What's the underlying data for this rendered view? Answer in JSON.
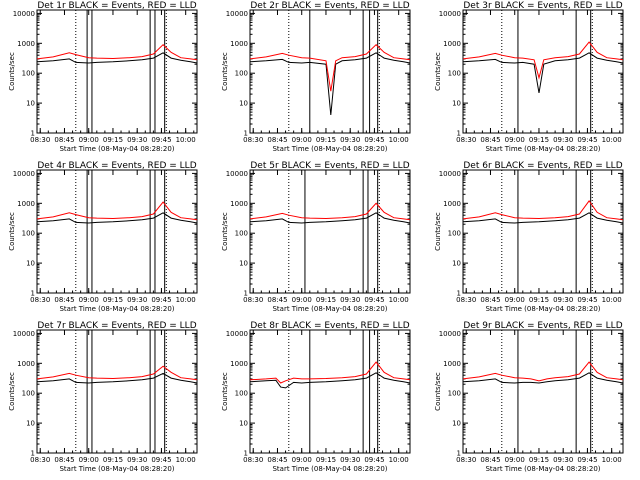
{
  "figure": {
    "rows": 3,
    "cols": 3,
    "colors": {
      "events": "#000000",
      "lld": "#ff0000",
      "axes": "#000000"
    }
  },
  "common": {
    "xlabel": "Start Time (08-May-04 08:28:20)",
    "ylabel": "Counts/sec",
    "xticks": [
      "08:30",
      "08:45",
      "09:00",
      "09:15",
      "09:30",
      "09:45",
      "10:00"
    ],
    "yticks": [
      "1",
      "10",
      "100",
      "1000",
      "10000"
    ]
  },
  "chart_data": [
    {
      "type": "line",
      "title": "Det 1r BLACK = Events, RED = LLD",
      "xlim": [
        "08:28",
        "10:07"
      ],
      "ylim": [
        1,
        13000
      ],
      "yscale": "log",
      "x": [
        "08:28",
        "08:38",
        "08:48",
        "08:52",
        "09:00",
        "09:05",
        "09:15",
        "09:25",
        "09:33",
        "09:40",
        "09:46",
        "09:51",
        "09:57",
        "10:03",
        "10:07"
      ],
      "series": [
        {
          "name": "Events",
          "values": [
            240,
            260,
            300,
            230,
            220,
            230,
            240,
            260,
            280,
            320,
            480,
            320,
            270,
            240,
            220
          ]
        },
        {
          "name": "LLD",
          "values": [
            300,
            350,
            480,
            420,
            330,
            320,
            310,
            330,
            360,
            440,
            900,
            500,
            330,
            300,
            280
          ]
        }
      ],
      "vlines_solid": [
        "08:59",
        "09:02",
        "09:38",
        "09:41",
        "09:47"
      ],
      "vlines_dotted": [
        "08:52",
        "09:48"
      ]
    },
    {
      "type": "line",
      "title": "Det 2r BLACK = Events, RED = LLD",
      "xlim": [
        "08:28",
        "10:07"
      ],
      "ylim": [
        1,
        13000
      ],
      "yscale": "log",
      "x": [
        "08:28",
        "08:38",
        "08:48",
        "08:52",
        "09:00",
        "09:05",
        "09:15",
        "09:18",
        "09:21",
        "09:25",
        "09:33",
        "09:40",
        "09:46",
        "09:51",
        "09:57",
        "10:03",
        "10:07"
      ],
      "series": [
        {
          "name": "Events",
          "values": [
            240,
            260,
            290,
            230,
            220,
            230,
            200,
            4,
            200,
            260,
            280,
            320,
            480,
            320,
            270,
            240,
            220
          ]
        },
        {
          "name": "LLD",
          "values": [
            300,
            350,
            460,
            400,
            330,
            320,
            260,
            25,
            260,
            330,
            360,
            440,
            900,
            500,
            330,
            300,
            280
          ]
        }
      ],
      "vlines_solid": [
        "09:05",
        "09:38",
        "09:42",
        "09:47"
      ],
      "vlines_dotted": [
        "08:52",
        "09:48"
      ]
    },
    {
      "type": "line",
      "title": "Det 3r BLACK = Events, RED = LLD",
      "xlim": [
        "08:28",
        "10:07"
      ],
      "ylim": [
        1,
        13000
      ],
      "yscale": "log",
      "x": [
        "08:28",
        "08:38",
        "08:48",
        "08:52",
        "09:00",
        "09:05",
        "09:12",
        "09:15",
        "09:18",
        "09:25",
        "09:33",
        "09:40",
        "09:46",
        "09:51",
        "09:57",
        "10:03",
        "10:07"
      ],
      "series": [
        {
          "name": "Events",
          "values": [
            240,
            260,
            290,
            230,
            220,
            230,
            200,
            22,
            200,
            260,
            280,
            320,
            480,
            320,
            270,
            240,
            220
          ]
        },
        {
          "name": "LLD",
          "values": [
            300,
            350,
            460,
            400,
            330,
            320,
            280,
            70,
            280,
            330,
            360,
            440,
            1100,
            500,
            330,
            300,
            280
          ]
        }
      ],
      "vlines_solid": [
        "09:02",
        "09:38",
        "09:47"
      ],
      "vlines_dotted": [
        "08:52",
        "09:48"
      ]
    },
    {
      "type": "line",
      "title": "Det 4r BLACK = Events, RED = LLD",
      "xlim": [
        "08:28",
        "10:07"
      ],
      "ylim": [
        1,
        13000
      ],
      "yscale": "log",
      "x": [
        "08:28",
        "08:38",
        "08:48",
        "08:52",
        "09:00",
        "09:05",
        "09:15",
        "09:25",
        "09:33",
        "09:40",
        "09:46",
        "09:51",
        "09:57",
        "10:03",
        "10:07"
      ],
      "series": [
        {
          "name": "Events",
          "values": [
            240,
            260,
            300,
            230,
            220,
            230,
            240,
            260,
            280,
            320,
            480,
            320,
            270,
            240,
            220
          ]
        },
        {
          "name": "LLD",
          "values": [
            300,
            350,
            480,
            420,
            330,
            320,
            310,
            330,
            360,
            440,
            1100,
            500,
            330,
            300,
            280
          ]
        }
      ],
      "vlines_solid": [
        "08:59",
        "09:02",
        "09:38",
        "09:41",
        "09:47"
      ],
      "vlines_dotted": [
        "08:52",
        "09:48"
      ]
    },
    {
      "type": "line",
      "title": "Det 5r BLACK = Events, RED = LLD",
      "xlim": [
        "08:28",
        "10:07"
      ],
      "ylim": [
        1,
        13000
      ],
      "yscale": "log",
      "x": [
        "08:28",
        "08:38",
        "08:48",
        "08:52",
        "09:00",
        "09:05",
        "09:15",
        "09:25",
        "09:33",
        "09:40",
        "09:46",
        "09:51",
        "09:57",
        "10:03",
        "10:07"
      ],
      "series": [
        {
          "name": "Events",
          "values": [
            240,
            260,
            300,
            230,
            220,
            230,
            240,
            260,
            280,
            320,
            480,
            320,
            270,
            240,
            220
          ]
        },
        {
          "name": "LLD",
          "values": [
            300,
            350,
            460,
            400,
            330,
            320,
            310,
            330,
            360,
            440,
            1000,
            500,
            330,
            300,
            280
          ]
        }
      ],
      "vlines_solid": [
        "09:02",
        "09:38",
        "09:41",
        "09:47"
      ],
      "vlines_dotted": [
        "08:52",
        "09:48"
      ]
    },
    {
      "type": "line",
      "title": "Det 6r BLACK = Events, RED = LLD",
      "xlim": [
        "08:28",
        "10:07"
      ],
      "ylim": [
        1,
        13000
      ],
      "yscale": "log",
      "x": [
        "08:28",
        "08:38",
        "08:48",
        "08:52",
        "09:00",
        "09:05",
        "09:15",
        "09:25",
        "09:33",
        "09:40",
        "09:46",
        "09:51",
        "09:57",
        "10:03",
        "10:07"
      ],
      "series": [
        {
          "name": "Events",
          "values": [
            240,
            260,
            300,
            230,
            220,
            230,
            240,
            260,
            280,
            320,
            480,
            320,
            270,
            240,
            220
          ]
        },
        {
          "name": "LLD",
          "values": [
            300,
            350,
            480,
            420,
            330,
            320,
            310,
            330,
            360,
            440,
            1200,
            500,
            330,
            300,
            280
          ]
        }
      ],
      "vlines_solid": [
        "09:02",
        "09:38",
        "09:47"
      ],
      "vlines_dotted": [
        "08:52",
        "09:48"
      ]
    },
    {
      "type": "line",
      "title": "Det 7r BLACK = Events, RED = LLD",
      "xlim": [
        "08:28",
        "10:07"
      ],
      "ylim": [
        1,
        13000
      ],
      "yscale": "log",
      "x": [
        "08:28",
        "08:38",
        "08:48",
        "08:52",
        "09:00",
        "09:05",
        "09:15",
        "09:25",
        "09:33",
        "09:40",
        "09:46",
        "09:51",
        "09:57",
        "10:03",
        "10:07"
      ],
      "series": [
        {
          "name": "Events",
          "values": [
            240,
            260,
            300,
            230,
            220,
            230,
            240,
            260,
            280,
            320,
            460,
            320,
            270,
            240,
            220
          ]
        },
        {
          "name": "LLD",
          "values": [
            300,
            350,
            460,
            400,
            330,
            320,
            310,
            330,
            360,
            440,
            800,
            500,
            330,
            300,
            280
          ]
        }
      ],
      "vlines_solid": [
        "08:59",
        "09:02",
        "09:38",
        "09:41",
        "09:47"
      ],
      "vlines_dotted": [
        "08:52",
        "09:48"
      ]
    },
    {
      "type": "line",
      "title": "Det 8r BLACK = Events, RED = LLD",
      "xlim": [
        "08:28",
        "10:07"
      ],
      "ylim": [
        1,
        13000
      ],
      "yscale": "log",
      "x": [
        "08:28",
        "08:38",
        "08:44",
        "08:47",
        "08:50",
        "08:55",
        "09:00",
        "09:05",
        "09:15",
        "09:25",
        "09:33",
        "09:40",
        "09:46",
        "09:51",
        "09:57",
        "10:03",
        "10:07"
      ],
      "series": [
        {
          "name": "Events",
          "values": [
            240,
            260,
            270,
            160,
            150,
            230,
            220,
            230,
            240,
            260,
            280,
            320,
            480,
            320,
            270,
            240,
            220
          ]
        },
        {
          "name": "LLD",
          "values": [
            280,
            300,
            320,
            220,
            260,
            320,
            300,
            300,
            310,
            330,
            360,
            440,
            1100,
            500,
            330,
            300,
            280
          ]
        }
      ],
      "vlines_solid": [
        "09:05",
        "09:38",
        "09:42",
        "09:47"
      ],
      "vlines_dotted": [
        "08:52",
        "09:48"
      ]
    },
    {
      "type": "line",
      "title": "Det 9r BLACK = Events, RED = LLD",
      "xlim": [
        "08:28",
        "10:07"
      ],
      "ylim": [
        1,
        13000
      ],
      "yscale": "log",
      "x": [
        "08:28",
        "08:38",
        "08:48",
        "08:52",
        "09:00",
        "09:05",
        "09:10",
        "09:15",
        "09:20",
        "09:25",
        "09:33",
        "09:40",
        "09:46",
        "09:51",
        "09:57",
        "10:03",
        "10:07"
      ],
      "series": [
        {
          "name": "Events",
          "values": [
            240,
            260,
            300,
            230,
            220,
            230,
            230,
            220,
            240,
            260,
            280,
            320,
            480,
            320,
            270,
            240,
            220
          ]
        },
        {
          "name": "LLD",
          "values": [
            300,
            350,
            460,
            400,
            330,
            320,
            300,
            260,
            300,
            330,
            360,
            440,
            1100,
            500,
            330,
            300,
            280
          ]
        }
      ],
      "vlines_solid": [
        "09:02",
        "09:38",
        "09:47"
      ],
      "vlines_dotted": [
        "08:52",
        "09:48"
      ]
    }
  ]
}
